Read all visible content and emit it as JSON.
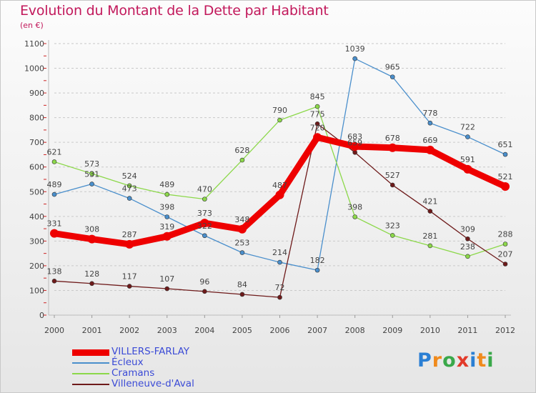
{
  "title": "Evolution du Montant de la Dette par Habitant",
  "subtitle": "(en €)",
  "logo": {
    "letters": [
      "P",
      "r",
      "o",
      "x",
      "i",
      "t",
      "i"
    ],
    "colors": [
      "#2a7fd4",
      "#f08a1c",
      "#3aa84a",
      "#e23a2a",
      "#2a7fd4",
      "#f08a1c",
      "#3aa84a"
    ]
  },
  "chart_data": {
    "type": "line",
    "title": "Evolution du Montant de la Dette par Habitant",
    "ylabel": "(en €)",
    "xlabel": "",
    "categories": [
      "2000",
      "2001",
      "2002",
      "2003",
      "2004",
      "2005",
      "2006",
      "2007",
      "2008",
      "2009",
      "2010",
      "2011",
      "2012"
    ],
    "ylim": [
      0,
      1100
    ],
    "yticks": [
      "0",
      "100",
      "200",
      "300",
      "400",
      "500",
      "600",
      "700",
      "800",
      "900",
      "1000",
      "1100"
    ],
    "grid": "horizontal dashed",
    "legend_position": "bottom-left",
    "series": [
      {
        "name": "VILLERS-FARLAY",
        "color": "#ee0000",
        "stroke": "thick",
        "values": [
          331,
          308,
          287,
          319,
          373,
          348,
          487,
          720,
          683,
          678,
          669,
          591,
          521
        ],
        "labels": [
          "331",
          "308",
          "287",
          "319",
          "373",
          "348",
          "487",
          "720",
          "683",
          "678",
          "669",
          "591",
          "521"
        ]
      },
      {
        "name": "Écleux",
        "color": "#4a8fcc",
        "stroke": "thin",
        "values": [
          489,
          531,
          473,
          398,
          322,
          253,
          214,
          182,
          1039,
          965,
          778,
          722,
          651
        ],
        "labels": [
          "489",
          "531",
          "473",
          "398",
          "322",
          "253",
          "214",
          "182",
          "1039",
          "965",
          "778",
          "722",
          "651"
        ]
      },
      {
        "name": "Cramans",
        "color": "#8cd84a",
        "stroke": "thin",
        "values": [
          621,
          573,
          524,
          489,
          470,
          628,
          790,
          845,
          398,
          323,
          281,
          238,
          288
        ],
        "labels": [
          "621",
          "573",
          "524",
          "489",
          "470",
          "628",
          "790",
          "845",
          "398",
          "323",
          "281",
          "238",
          "288"
        ]
      },
      {
        "name": "Villeneuve-d'Aval",
        "color": "#6e1a1a",
        "stroke": "thin",
        "values": [
          138,
          128,
          117,
          107,
          96,
          84,
          72,
          775,
          659,
          527,
          421,
          309,
          207
        ],
        "labels": [
          "138",
          "128",
          "117",
          "107",
          "96",
          "84",
          "72",
          "775",
          "659",
          "527",
          "421",
          "309",
          "207"
        ]
      }
    ]
  }
}
